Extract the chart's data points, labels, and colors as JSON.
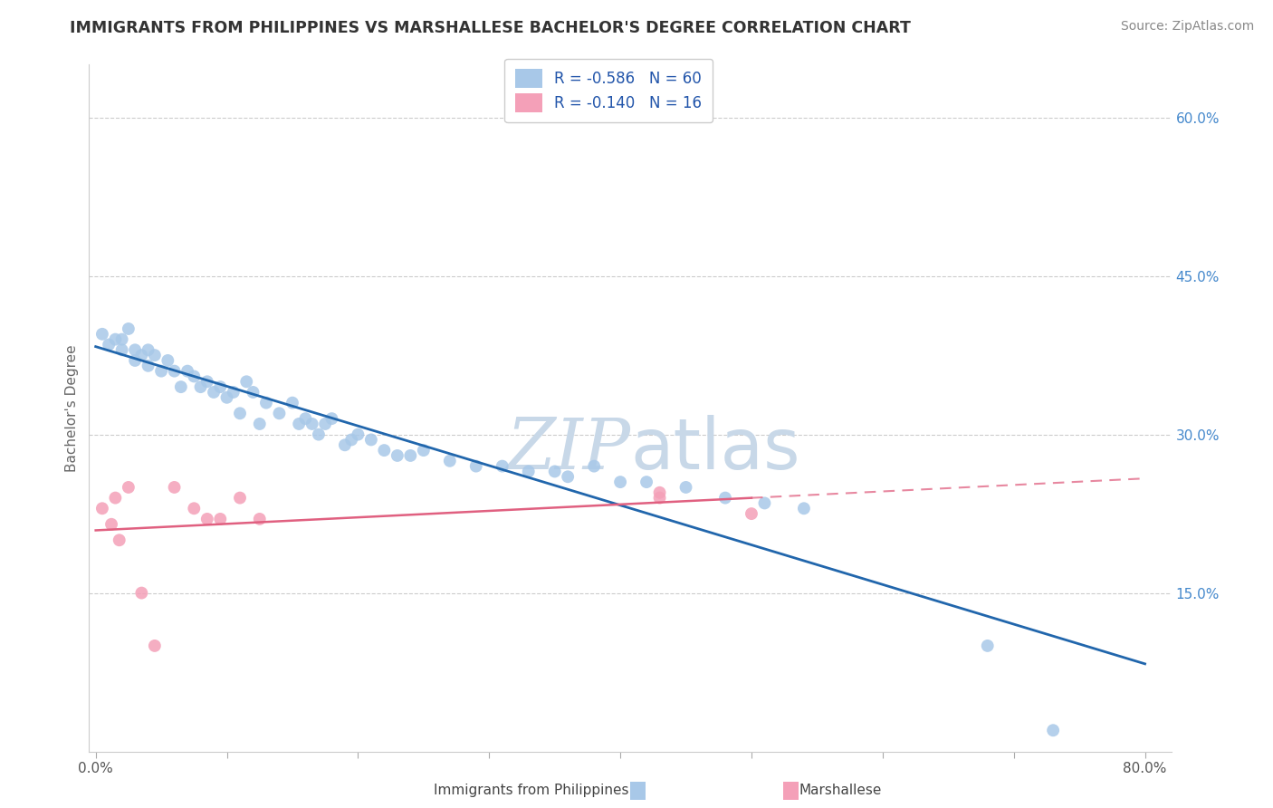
{
  "title": "IMMIGRANTS FROM PHILIPPINES VS MARSHALLESE BACHELOR'S DEGREE CORRELATION CHART",
  "source_text": "Source: ZipAtlas.com",
  "ylabel": "Bachelor's Degree",
  "legend_label1": "Immigrants from Philippines",
  "legend_label2": "Marshallese",
  "R1": -0.586,
  "N1": 60,
  "R2": -0.14,
  "N2": 16,
  "xlim": [
    -0.005,
    0.82
  ],
  "ylim": [
    0.0,
    0.65
  ],
  "xticks": [
    0.0,
    0.1,
    0.2,
    0.3,
    0.4,
    0.5,
    0.6,
    0.7,
    0.8
  ],
  "ytick_positions": [
    0.15,
    0.3,
    0.45,
    0.6
  ],
  "ytick_labels": [
    "15.0%",
    "30.0%",
    "45.0%",
    "60.0%"
  ],
  "color_blue": "#a8c8e8",
  "color_pink": "#f4a0b8",
  "line_color_blue": "#2166ac",
  "line_color_pink": "#e06080",
  "watermark_color": "#c8d8e8",
  "background_color": "#ffffff",
  "grid_color": "#cccccc",
  "blue_scatter_x": [
    0.005,
    0.01,
    0.015,
    0.02,
    0.02,
    0.025,
    0.03,
    0.03,
    0.035,
    0.04,
    0.04,
    0.045,
    0.05,
    0.055,
    0.06,
    0.065,
    0.07,
    0.075,
    0.08,
    0.085,
    0.09,
    0.095,
    0.1,
    0.105,
    0.11,
    0.115,
    0.12,
    0.125,
    0.13,
    0.14,
    0.15,
    0.155,
    0.16,
    0.165,
    0.17,
    0.175,
    0.18,
    0.19,
    0.195,
    0.2,
    0.21,
    0.22,
    0.23,
    0.24,
    0.25,
    0.27,
    0.29,
    0.31,
    0.33,
    0.35,
    0.36,
    0.38,
    0.4,
    0.42,
    0.45,
    0.48,
    0.51,
    0.54,
    0.68,
    0.73
  ],
  "blue_scatter_y": [
    0.395,
    0.385,
    0.39,
    0.39,
    0.38,
    0.4,
    0.38,
    0.37,
    0.375,
    0.38,
    0.365,
    0.375,
    0.36,
    0.37,
    0.36,
    0.345,
    0.36,
    0.355,
    0.345,
    0.35,
    0.34,
    0.345,
    0.335,
    0.34,
    0.32,
    0.35,
    0.34,
    0.31,
    0.33,
    0.32,
    0.33,
    0.31,
    0.315,
    0.31,
    0.3,
    0.31,
    0.315,
    0.29,
    0.295,
    0.3,
    0.295,
    0.285,
    0.28,
    0.28,
    0.285,
    0.275,
    0.27,
    0.27,
    0.265,
    0.265,
    0.26,
    0.27,
    0.255,
    0.255,
    0.25,
    0.24,
    0.235,
    0.23,
    0.1,
    0.02
  ],
  "pink_scatter_x": [
    0.005,
    0.012,
    0.015,
    0.018,
    0.025,
    0.035,
    0.045,
    0.06,
    0.075,
    0.085,
    0.095,
    0.11,
    0.125,
    0.43,
    0.43,
    0.5
  ],
  "pink_scatter_y": [
    0.23,
    0.215,
    0.24,
    0.2,
    0.25,
    0.15,
    0.1,
    0.25,
    0.23,
    0.22,
    0.22,
    0.24,
    0.22,
    0.245,
    0.24,
    0.225
  ]
}
